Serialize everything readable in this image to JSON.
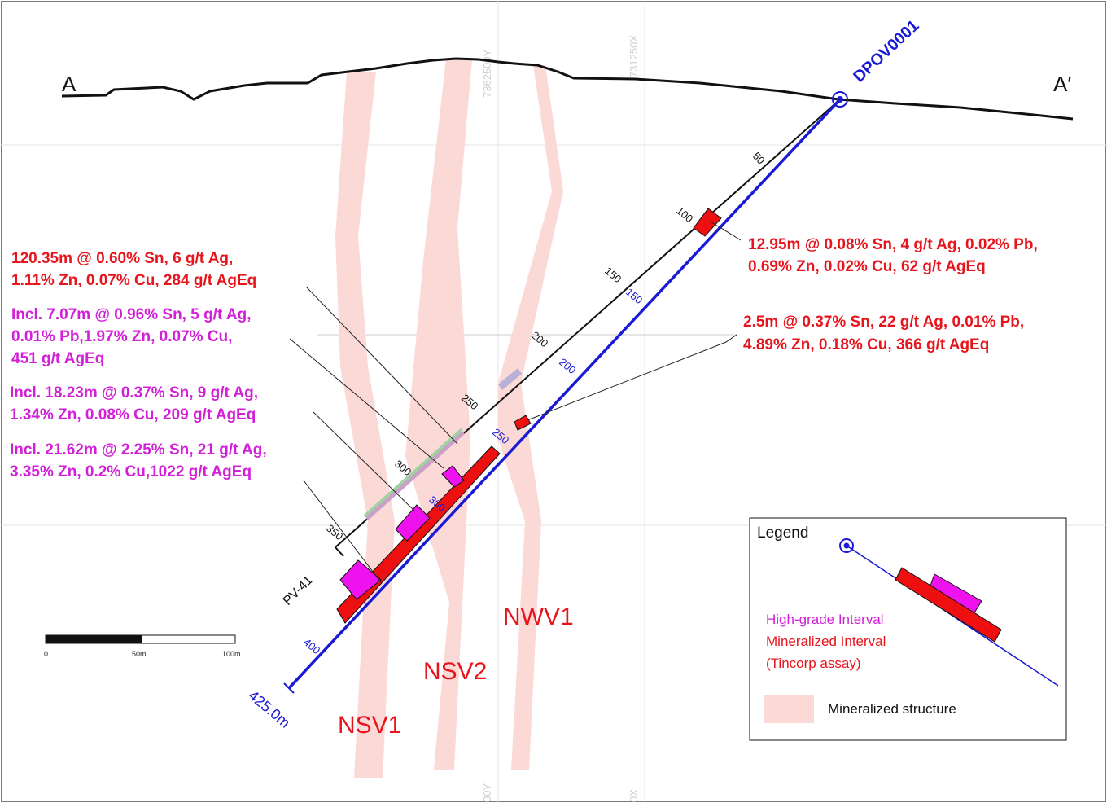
{
  "section": {
    "start_label": "A",
    "end_label": "A′",
    "grid_labels": [
      "7362500Y",
      "731250X",
      "00Y",
      "0X"
    ]
  },
  "drillholes": {
    "main": {
      "name": "DPOV0001",
      "end_depth": "425.0m",
      "depth_ticks": [
        "150",
        "200",
        "250",
        "300",
        "400"
      ]
    },
    "secondary": {
      "name": "PV-41",
      "depth_ticks": [
        "50",
        "100",
        "150",
        "200",
        "250",
        "300",
        "350"
      ]
    }
  },
  "structures": [
    "NSV1",
    "NSV2",
    "NWV1"
  ],
  "annotations": {
    "mineralized_main": [
      "120.35m @ 0.60% Sn, 6 g/t Ag,",
      "1.11% Zn, 0.07% Cu, 284 g/t AgEq"
    ],
    "incl_1": [
      "Incl. 7.07m @ 0.96% Sn, 5 g/t Ag,",
      "0.01% Pb,1.97% Zn, 0.07% Cu,",
      "451 g/t AgEq"
    ],
    "incl_2": [
      "Incl. 18.23m @ 0.37% Sn, 9 g/t Ag,",
      "1.34% Zn, 0.08% Cu, 209 g/t AgEq"
    ],
    "incl_3": [
      "Incl. 21.62m @ 2.25% Sn, 21 g/t Ag,",
      "3.35% Zn, 0.2% Cu,1022 g/t AgEq"
    ],
    "upper_interval": [
      "12.95m @ 0.08% Sn, 4 g/t Ag, 0.02% Pb,",
      "0.69% Zn, 0.02% Cu, 62 g/t AgEq"
    ],
    "mid_interval": [
      "2.5m @ 0.37% Sn, 22 g/t Ag, 0.01% Pb,",
      "4.89% Zn, 0.18% Cu, 366 g/t AgEq"
    ]
  },
  "legend": {
    "title": "Legend",
    "high_grade": "High-grade Interval",
    "mineralized": "Mineralized Interval",
    "mineralized_sub": "(Tincorp assay)",
    "structure": "Mineralized structure"
  },
  "scale_bar": {
    "labels": [
      "0",
      "50m",
      "100m"
    ]
  },
  "colors": {
    "high_grade": "#ee12ee",
    "mineralized": "#ee1010",
    "structure": "#fbd9d6",
    "hole_trace": "#1a1ad6",
    "annotation_red": "#e8141c",
    "annotation_magenta": "#d21fd8"
  }
}
